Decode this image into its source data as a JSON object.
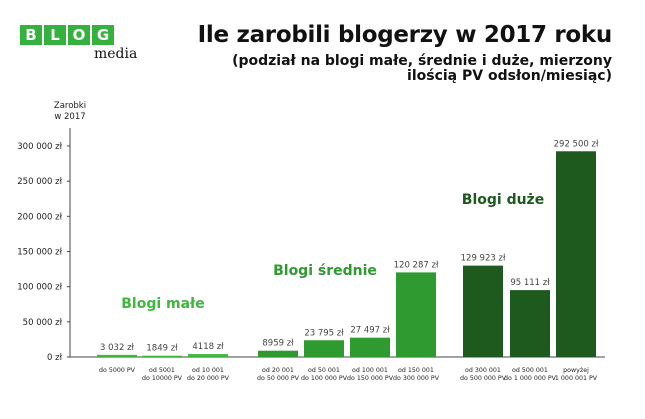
{
  "brand": {
    "letters": [
      "B",
      "L",
      "O",
      "G"
    ],
    "word": "media",
    "colors": [
      "#35b23d",
      "#35b23d",
      "#35b23d",
      "#35b23d"
    ]
  },
  "header": {
    "title": "Ile zarobili blogerzy w 2017 roku",
    "subtitle_line1": "(podział na blogi małe, średnie i duże, mierzony",
    "subtitle_line2": "ilością PV odsłon/miesiąc)"
  },
  "chart_data": {
    "type": "bar",
    "ylabel": "Zarobki\nw 2017",
    "ylim": [
      0,
      300000
    ],
    "yticks": [
      0,
      50000,
      100000,
      150000,
      200000,
      250000,
      300000
    ],
    "ytick_labels": [
      "0 zł",
      "50 000 zł",
      "100 000 zł",
      "150 000 zł",
      "200 000 zł",
      "250 000 zł",
      "300 000 zł"
    ],
    "grid": false,
    "groups": [
      {
        "name": "Blogi małe",
        "color": "#3db83f"
      },
      {
        "name": "Blogi średnie",
        "color": "#2f9a2f"
      },
      {
        "name": "Blogi duże",
        "color": "#1e5a1e"
      }
    ],
    "bars": [
      {
        "category": "do 5000 PV",
        "value": 3032,
        "label": "3 032 zł",
        "group": 0
      },
      {
        "category": "od 5001\ndo 10000 PV",
        "value": 1849,
        "label": "1849 zł",
        "group": 0
      },
      {
        "category": "od 10 001\ndo 20 000 PV",
        "value": 4118,
        "label": "4118 zł",
        "group": 0
      },
      {
        "category": "od 20 001\ndo 50 000 PV",
        "value": 8959,
        "label": "8959 zł",
        "group": 1
      },
      {
        "category": "od 50 001\ndo 100 000 PV",
        "value": 23795,
        "label": "23 795 zł",
        "group": 1
      },
      {
        "category": "od 100 001\ndo 150 000 PV",
        "value": 27497,
        "label": "27 497 zł",
        "group": 1
      },
      {
        "category": "od 150 001\ndo 300 000 PV",
        "value": 120287,
        "label": "120 287 zł",
        "group": 1
      },
      {
        "category": "od 300 001\ndo 500 000 PV",
        "value": 129923,
        "label": "129 923 zł",
        "group": 2
      },
      {
        "category": "od 500 001\ndo 1 000 000 PV",
        "value": 95111,
        "label": "95 111 zł",
        "group": 2
      },
      {
        "category": "powyżej\n1 000 001 PV",
        "value": 292500,
        "label": "292 500 zł",
        "group": 2
      }
    ]
  }
}
